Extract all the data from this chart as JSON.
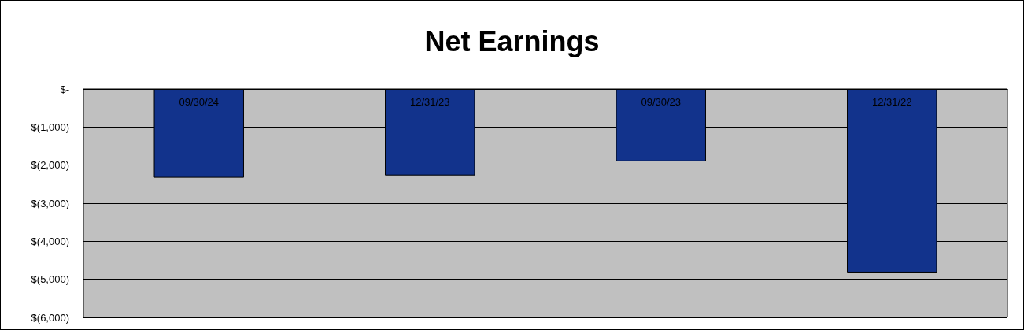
{
  "chart_data": {
    "type": "bar",
    "title": "Net Earnings",
    "categories": [
      "09/30/24",
      "12/31/23",
      "09/30/23",
      "12/31/22"
    ],
    "values": [
      -2330,
      -2270,
      -1900,
      -4820
    ],
    "color": "#12338c",
    "ylim": [
      -6000,
      0
    ],
    "yticks": [
      {
        "value": 0,
        "label": "$-"
      },
      {
        "value": -1000,
        "label": "$(1,000)"
      },
      {
        "value": -2000,
        "label": "$(2,000)"
      },
      {
        "value": -3000,
        "label": "$(3,000)"
      },
      {
        "value": -4000,
        "label": "$(4,000)"
      },
      {
        "value": -5000,
        "label": "$(5,000)"
      },
      {
        "value": -6000,
        "label": "$(6,000)"
      }
    ],
    "grid": true
  }
}
